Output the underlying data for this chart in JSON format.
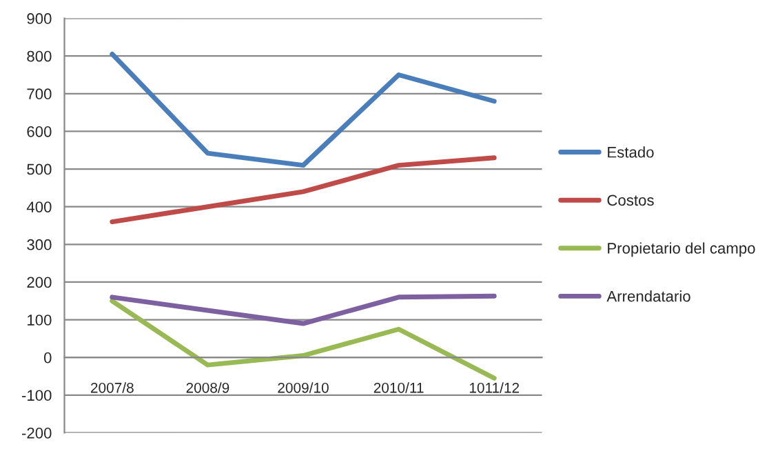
{
  "chart_data": {
    "type": "line",
    "categories": [
      "2007/8",
      "2008/9",
      "2009/10",
      "2010/11",
      "1011/12"
    ],
    "series": [
      {
        "name": "Estado",
        "color": "#4a7ebb",
        "values": [
          805,
          542,
          510,
          750,
          680
        ]
      },
      {
        "name": "Costos",
        "color": "#be4b48",
        "values": [
          360,
          400,
          440,
          510,
          530
        ]
      },
      {
        "name": "Propietario del campo",
        "color": "#98b954",
        "values": [
          150,
          -20,
          5,
          75,
          -55
        ]
      },
      {
        "name": "Arrendatario",
        "color": "#7d60a0",
        "values": [
          160,
          125,
          90,
          160,
          163
        ]
      }
    ],
    "ylim": [
      -200,
      900
    ],
    "yticks": [
      -200,
      -100,
      0,
      100,
      200,
      300,
      400,
      500,
      600,
      700,
      800,
      900
    ],
    "grid": "y",
    "legend": "right",
    "marker": "none",
    "line_style": "solid"
  }
}
